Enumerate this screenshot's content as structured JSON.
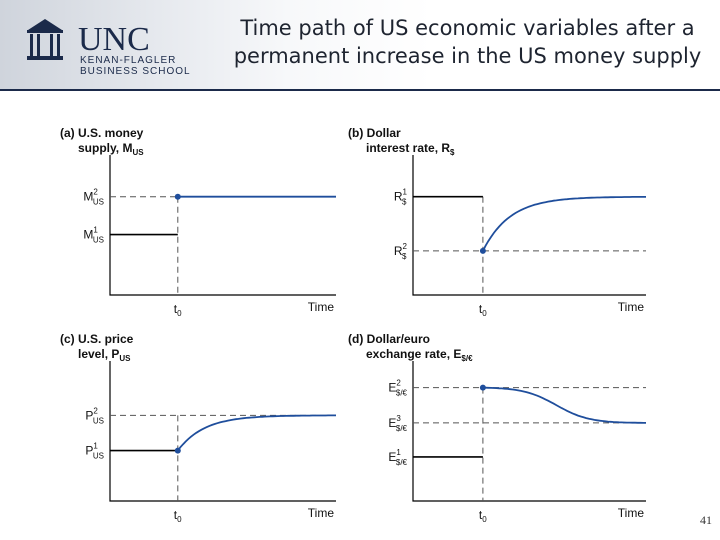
{
  "header": {
    "logo_text": "UNC",
    "logo_sub1": "KENAN-FLAGLER",
    "logo_sub2": "BUSINESS SCHOOL",
    "title_line1": "Time path of US economic variables after a",
    "title_line2": "permanent increase in the US money supply"
  },
  "slide_number": "41",
  "colors": {
    "curve": "#1f4e9c",
    "dash": "#555555",
    "axis": "#000000"
  },
  "chart_data": [
    {
      "id": "a",
      "type": "line",
      "title_line1": "(a) U.S. money",
      "title_line2": "supply, M",
      "title_sub": "US",
      "xlabel": "Time",
      "x_tick": "t",
      "x_tick_sub": "0",
      "y_levels": [
        {
          "name": "M",
          "sup": "2",
          "sub": "US",
          "value": 0.78
        },
        {
          "name": "M",
          "sup": "1",
          "sub": "US",
          "value": 0.48
        }
      ],
      "shock_x": 0.3,
      "initial_level": 0.48,
      "jump_level": 0.78,
      "long_run_level": 0.78,
      "curve": "flat"
    },
    {
      "id": "b",
      "type": "line",
      "title_line1": "(b) Dollar",
      "title_line2": "interest rate, R",
      "title_sub": "$",
      "xlabel": "Time",
      "x_tick": "t",
      "x_tick_sub": "0",
      "y_levels": [
        {
          "name": "R",
          "sup": "1",
          "sub": "$",
          "value": 0.78
        },
        {
          "name": "R",
          "sup": "2",
          "sub": "$",
          "value": 0.35
        }
      ],
      "shock_x": 0.3,
      "initial_level": 0.78,
      "jump_level": 0.35,
      "long_run_level": 0.78,
      "curve": "converge"
    },
    {
      "id": "c",
      "type": "line",
      "title_line1": "(c) U.S. price",
      "title_line2": "level, P",
      "title_sub": "US",
      "xlabel": "Time",
      "x_tick": "t",
      "x_tick_sub": "0",
      "y_levels": [
        {
          "name": "P",
          "sup": "2",
          "sub": "US",
          "value": 0.68
        },
        {
          "name": "P",
          "sup": "1",
          "sub": "US",
          "value": 0.4
        }
      ],
      "shock_x": 0.3,
      "initial_level": 0.4,
      "jump_level": 0.4,
      "long_run_level": 0.68,
      "curve": "converge"
    },
    {
      "id": "d",
      "type": "line",
      "title_line1": "(d) Dollar/euro",
      "title_line2": "exchange rate, E",
      "title_sub": "$/€",
      "xlabel": "Time",
      "x_tick": "t",
      "x_tick_sub": "0",
      "y_levels": [
        {
          "name": "E",
          "sup": "2",
          "sub": "$/€",
          "value": 0.9
        },
        {
          "name": "E",
          "sup": "3",
          "sub": "$/€",
          "value": 0.62
        },
        {
          "name": "E",
          "sup": "1",
          "sub": "$/€",
          "value": 0.35
        }
      ],
      "shock_x": 0.3,
      "initial_level": 0.35,
      "jump_level": 0.9,
      "long_run_level": 0.62,
      "curve": "sigmoid"
    }
  ]
}
